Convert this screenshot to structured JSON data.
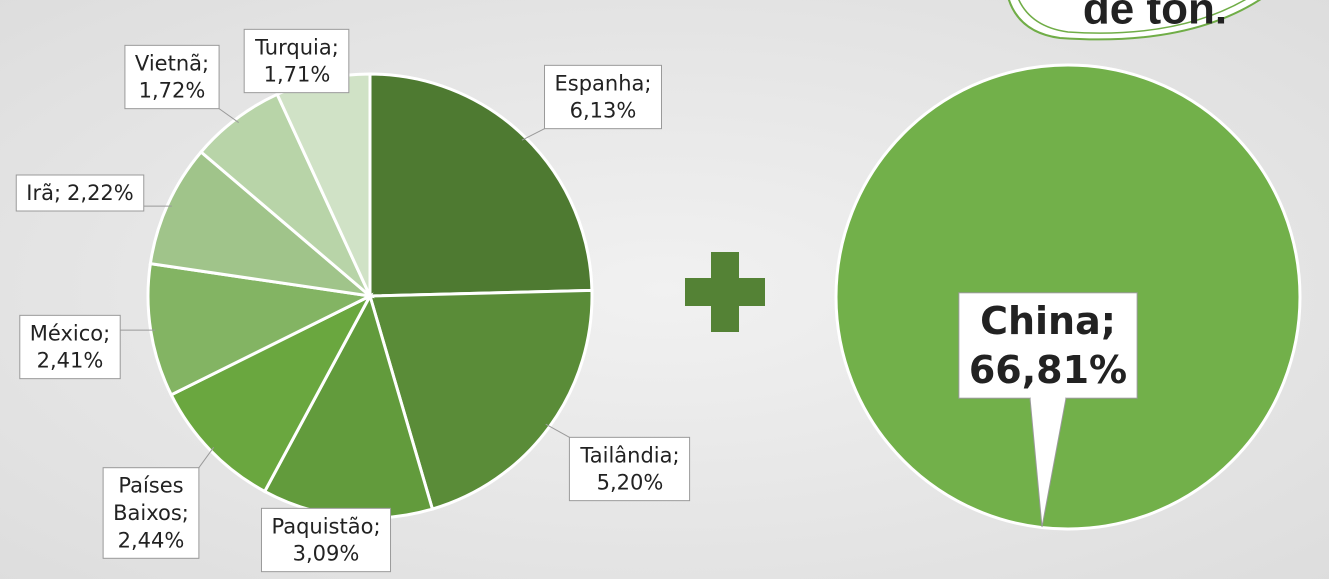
{
  "chart_data": [
    {
      "type": "pie",
      "categories": [
        "Espanha;",
        "Tailândia;",
        "Paquistão;",
        "Países Baixos;",
        "México;",
        "Irã;",
        "Vietnã;",
        "Turquia;"
      ],
      "values": [
        6.13,
        5.2,
        3.09,
        2.44,
        2.41,
        2.22,
        1.72,
        1.71
      ],
      "value_labels": [
        "6,13%",
        "5,20%",
        "3,09%",
        "2,44%",
        "2,41%",
        "2,22%",
        "1,72%",
        "1,71%"
      ],
      "colors": [
        "#4e7a31",
        "#5a8c38",
        "#629b3c",
        "#6aa73f",
        "#83b463",
        "#a0c48a",
        "#b8d4a8",
        "#d0e2c6"
      ]
    },
    {
      "type": "pie",
      "categories": [
        "China;"
      ],
      "values": [
        66.81
      ],
      "value_labels": [
        "66,81%"
      ],
      "colors": [
        "#72b04a"
      ],
      "annotation": "de ton."
    }
  ]
}
